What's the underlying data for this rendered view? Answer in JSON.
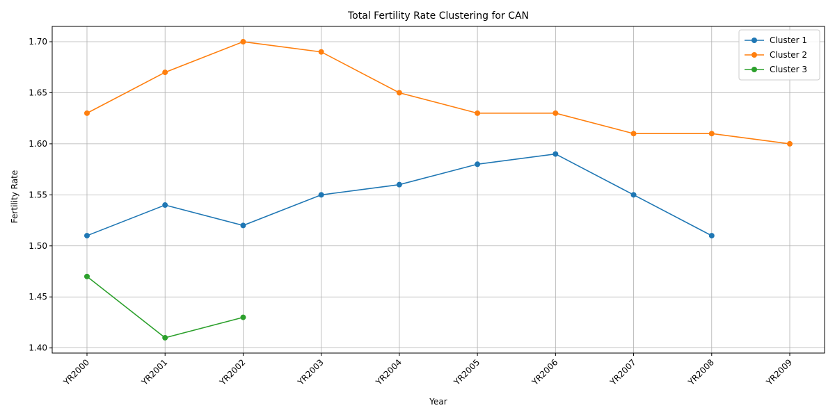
{
  "chart_data": {
    "type": "line",
    "title": "Total Fertility Rate Clustering for CAN",
    "xlabel": "Year",
    "ylabel": "Fertility Rate",
    "categories": [
      "YR2000",
      "YR2001",
      "YR2002",
      "YR2003",
      "YR2004",
      "YR2005",
      "YR2006",
      "YR2007",
      "YR2008",
      "YR2009"
    ],
    "ylim": [
      1.395,
      1.715
    ],
    "yticks": [
      "1.40",
      "1.45",
      "1.50",
      "1.55",
      "1.60",
      "1.65",
      "1.70"
    ],
    "grid": true,
    "legend_position": "top-right",
    "series": [
      {
        "name": "Cluster 1",
        "color": "#1f77b4",
        "values": [
          1.51,
          1.54,
          1.52,
          1.55,
          1.56,
          1.58,
          1.59,
          1.55,
          1.51,
          null
        ]
      },
      {
        "name": "Cluster 2",
        "color": "#ff7f0e",
        "values": [
          1.63,
          1.67,
          1.7,
          1.69,
          1.65,
          1.63,
          1.63,
          1.61,
          1.61,
          1.6
        ]
      },
      {
        "name": "Cluster 3",
        "color": "#2ca02c",
        "values": [
          1.47,
          1.41,
          1.43,
          null,
          null,
          null,
          null,
          null,
          null,
          null
        ]
      }
    ]
  }
}
